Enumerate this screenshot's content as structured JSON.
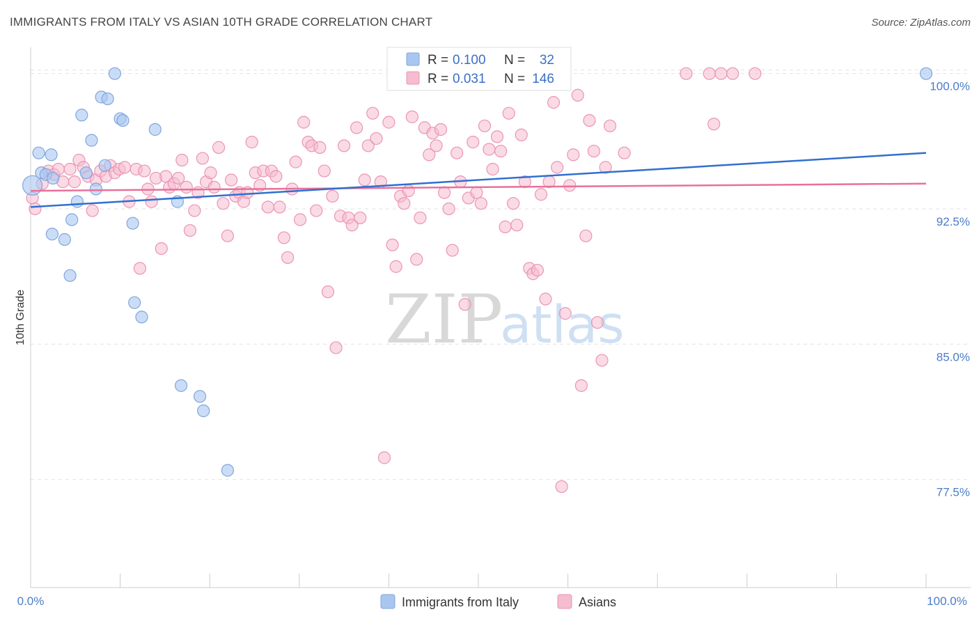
{
  "title": "IMMIGRANTS FROM ITALY VS ASIAN 10TH GRADE CORRELATION CHART",
  "source": "Source: ZipAtlas.com",
  "watermark": {
    "zip": "ZIP",
    "atlas": "atlas"
  },
  "colors": {
    "italy_fill": "#a9c6f0",
    "italy_stroke": "#7fa6dd",
    "italy_line": "#2f6fd0",
    "asian_fill": "#f6bcd0",
    "asian_stroke": "#eb94b3",
    "asian_line": "#e8709a",
    "grid": "#e2e2e2",
    "axis_text": "#4a7cc9"
  },
  "legend": {
    "italy": {
      "r_label": "R =",
      "r_value": "0.100",
      "n_label": "N =",
      "n_value": "32"
    },
    "asian": {
      "r_label": "R =",
      "r_value": "0.031",
      "n_label": "N =",
      "n_value": "146"
    }
  },
  "chart_data": {
    "type": "scatter",
    "title": "IMMIGRANTS FROM ITALY VS ASIAN 10TH GRADE CORRELATION CHART",
    "xlabel": "",
    "ylabel": "10th Grade",
    "xlim": [
      0,
      100
    ],
    "ylim": [
      71.5,
      101.3
    ],
    "x_tick_labels": [
      "0.0%",
      "100.0%"
    ],
    "y_ticks": [
      77.5,
      85.0,
      92.5,
      100.0
    ],
    "y_tick_labels": [
      "77.5%",
      "85.0%",
      "92.5%",
      "100.0%"
    ],
    "grid": "horizontal dashed",
    "legend_placement": "top-center",
    "series": [
      {
        "name": "Immigrants from Italy",
        "trend": {
          "x": [
            0,
            100
          ],
          "y": [
            92.6,
            95.6
          ]
        },
        "points": [
          [
            0.2,
            93.8
          ],
          [
            0.9,
            95.6
          ],
          [
            1.2,
            94.5
          ],
          [
            1.7,
            94.4
          ],
          [
            2.3,
            95.5
          ],
          [
            2.5,
            94.2
          ],
          [
            2.4,
            91.1
          ],
          [
            3.8,
            90.8
          ],
          [
            4.4,
            88.8
          ],
          [
            4.6,
            91.9
          ],
          [
            5.2,
            92.9
          ],
          [
            5.7,
            97.7
          ],
          [
            6.2,
            94.5
          ],
          [
            6.8,
            96.3
          ],
          [
            7.3,
            93.6
          ],
          [
            7.9,
            98.7
          ],
          [
            8.3,
            94.9
          ],
          [
            8.6,
            98.6
          ],
          [
            9.4,
            100.0
          ],
          [
            10.0,
            97.5
          ],
          [
            10.3,
            97.4
          ],
          [
            11.4,
            91.7
          ],
          [
            11.6,
            87.3
          ],
          [
            12.4,
            86.5
          ],
          [
            13.9,
            96.9
          ],
          [
            16.4,
            92.9
          ],
          [
            16.8,
            82.7
          ],
          [
            18.9,
            82.1
          ],
          [
            19.3,
            81.3
          ],
          [
            22.0,
            78.0
          ],
          [
            44.0,
            100.0
          ],
          [
            100.0,
            100.0
          ]
        ]
      },
      {
        "name": "Asians",
        "trend": {
          "x": [
            0,
            100
          ],
          "y": [
            93.5,
            93.9
          ]
        },
        "points": [
          [
            0.2,
            93.1
          ],
          [
            0.5,
            92.5
          ],
          [
            1.3,
            93.9
          ],
          [
            2.0,
            94.6
          ],
          [
            2.6,
            94.4
          ],
          [
            3.1,
            94.7
          ],
          [
            3.6,
            94.0
          ],
          [
            4.4,
            94.7
          ],
          [
            4.9,
            94.0
          ],
          [
            5.4,
            95.2
          ],
          [
            5.9,
            94.8
          ],
          [
            6.4,
            94.3
          ],
          [
            6.9,
            92.4
          ],
          [
            7.3,
            94.1
          ],
          [
            7.8,
            94.6
          ],
          [
            8.4,
            94.3
          ],
          [
            8.9,
            94.9
          ],
          [
            9.4,
            94.5
          ],
          [
            9.9,
            94.7
          ],
          [
            10.5,
            94.8
          ],
          [
            11.0,
            92.9
          ],
          [
            11.8,
            94.7
          ],
          [
            12.2,
            89.2
          ],
          [
            12.7,
            94.6
          ],
          [
            13.1,
            93.6
          ],
          [
            13.5,
            92.9
          ],
          [
            14.0,
            94.2
          ],
          [
            14.6,
            90.3
          ],
          [
            15.1,
            94.3
          ],
          [
            15.5,
            93.7
          ],
          [
            16.0,
            93.9
          ],
          [
            16.5,
            94.2
          ],
          [
            16.9,
            95.2
          ],
          [
            17.4,
            93.7
          ],
          [
            17.8,
            91.3
          ],
          [
            18.3,
            92.4
          ],
          [
            18.7,
            93.4
          ],
          [
            19.2,
            95.3
          ],
          [
            19.6,
            94.0
          ],
          [
            20.1,
            94.5
          ],
          [
            20.5,
            93.7
          ],
          [
            21.0,
            95.9
          ],
          [
            21.5,
            92.8
          ],
          [
            22.0,
            91.0
          ],
          [
            22.4,
            94.1
          ],
          [
            22.9,
            93.2
          ],
          [
            23.3,
            93.4
          ],
          [
            23.8,
            92.9
          ],
          [
            24.2,
            93.4
          ],
          [
            24.7,
            96.2
          ],
          [
            25.1,
            94.5
          ],
          [
            25.6,
            93.8
          ],
          [
            26.0,
            94.6
          ],
          [
            26.5,
            92.6
          ],
          [
            26.9,
            94.6
          ],
          [
            27.4,
            94.3
          ],
          [
            27.8,
            92.6
          ],
          [
            28.3,
            90.9
          ],
          [
            28.7,
            89.8
          ],
          [
            29.2,
            93.6
          ],
          [
            29.6,
            95.1
          ],
          [
            30.1,
            91.9
          ],
          [
            30.5,
            97.3
          ],
          [
            31.0,
            96.2
          ],
          [
            31.4,
            96.0
          ],
          [
            31.9,
            92.4
          ],
          [
            32.3,
            95.9
          ],
          [
            32.8,
            94.6
          ],
          [
            33.2,
            87.9
          ],
          [
            33.7,
            93.2
          ],
          [
            34.1,
            84.8
          ],
          [
            34.6,
            92.1
          ],
          [
            35.0,
            96.0
          ],
          [
            35.5,
            92.0
          ],
          [
            35.9,
            91.6
          ],
          [
            36.4,
            97.0
          ],
          [
            36.8,
            92.0
          ],
          [
            37.3,
            94.1
          ],
          [
            37.7,
            96.0
          ],
          [
            38.2,
            97.8
          ],
          [
            38.6,
            96.4
          ],
          [
            39.1,
            94.0
          ],
          [
            39.5,
            78.7
          ],
          [
            40.0,
            97.3
          ],
          [
            40.4,
            90.5
          ],
          [
            40.8,
            89.3
          ],
          [
            41.3,
            93.2
          ],
          [
            41.7,
            92.8
          ],
          [
            42.2,
            93.5
          ],
          [
            42.6,
            97.6
          ],
          [
            43.1,
            89.7
          ],
          [
            43.5,
            92.0
          ],
          [
            44.0,
            97.0
          ],
          [
            44.5,
            95.5
          ],
          [
            44.9,
            96.7
          ],
          [
            45.3,
            96.0
          ],
          [
            45.8,
            96.9
          ],
          [
            46.2,
            93.4
          ],
          [
            46.7,
            92.5
          ],
          [
            47.1,
            90.2
          ],
          [
            47.6,
            95.6
          ],
          [
            48.0,
            94.0
          ],
          [
            48.5,
            87.2
          ],
          [
            48.9,
            93.1
          ],
          [
            49.4,
            96.2
          ],
          [
            49.8,
            93.4
          ],
          [
            50.3,
            92.8
          ],
          [
            50.7,
            97.1
          ],
          [
            51.2,
            95.8
          ],
          [
            51.6,
            94.7
          ],
          [
            52.1,
            96.5
          ],
          [
            52.5,
            95.7
          ],
          [
            53.0,
            91.5
          ],
          [
            53.4,
            97.8
          ],
          [
            53.9,
            92.8
          ],
          [
            54.3,
            91.6
          ],
          [
            54.8,
            96.6
          ],
          [
            55.2,
            94.0
          ],
          [
            55.7,
            89.2
          ],
          [
            56.1,
            88.9
          ],
          [
            56.6,
            89.1
          ],
          [
            57.0,
            93.3
          ],
          [
            57.5,
            87.5
          ],
          [
            57.9,
            94.0
          ],
          [
            58.4,
            98.4
          ],
          [
            58.8,
            94.8
          ],
          [
            59.3,
            77.1
          ],
          [
            59.7,
            86.7
          ],
          [
            60.2,
            93.8
          ],
          [
            60.6,
            95.5
          ],
          [
            61.1,
            98.8
          ],
          [
            61.5,
            82.7
          ],
          [
            62.0,
            91.0
          ],
          [
            62.4,
            97.4
          ],
          [
            62.9,
            95.7
          ],
          [
            63.3,
            86.2
          ],
          [
            63.8,
            84.1
          ],
          [
            64.2,
            94.8
          ],
          [
            64.7,
            97.1
          ],
          [
            66.3,
            95.6
          ],
          [
            73.2,
            100.0
          ],
          [
            75.8,
            100.0
          ],
          [
            76.3,
            97.2
          ],
          [
            77.1,
            100.0
          ],
          [
            78.4,
            100.0
          ],
          [
            80.9,
            100.0
          ]
        ]
      }
    ]
  },
  "bottom_legend": [
    {
      "label": "Immigrants from Italy"
    },
    {
      "label": "Asians"
    }
  ]
}
